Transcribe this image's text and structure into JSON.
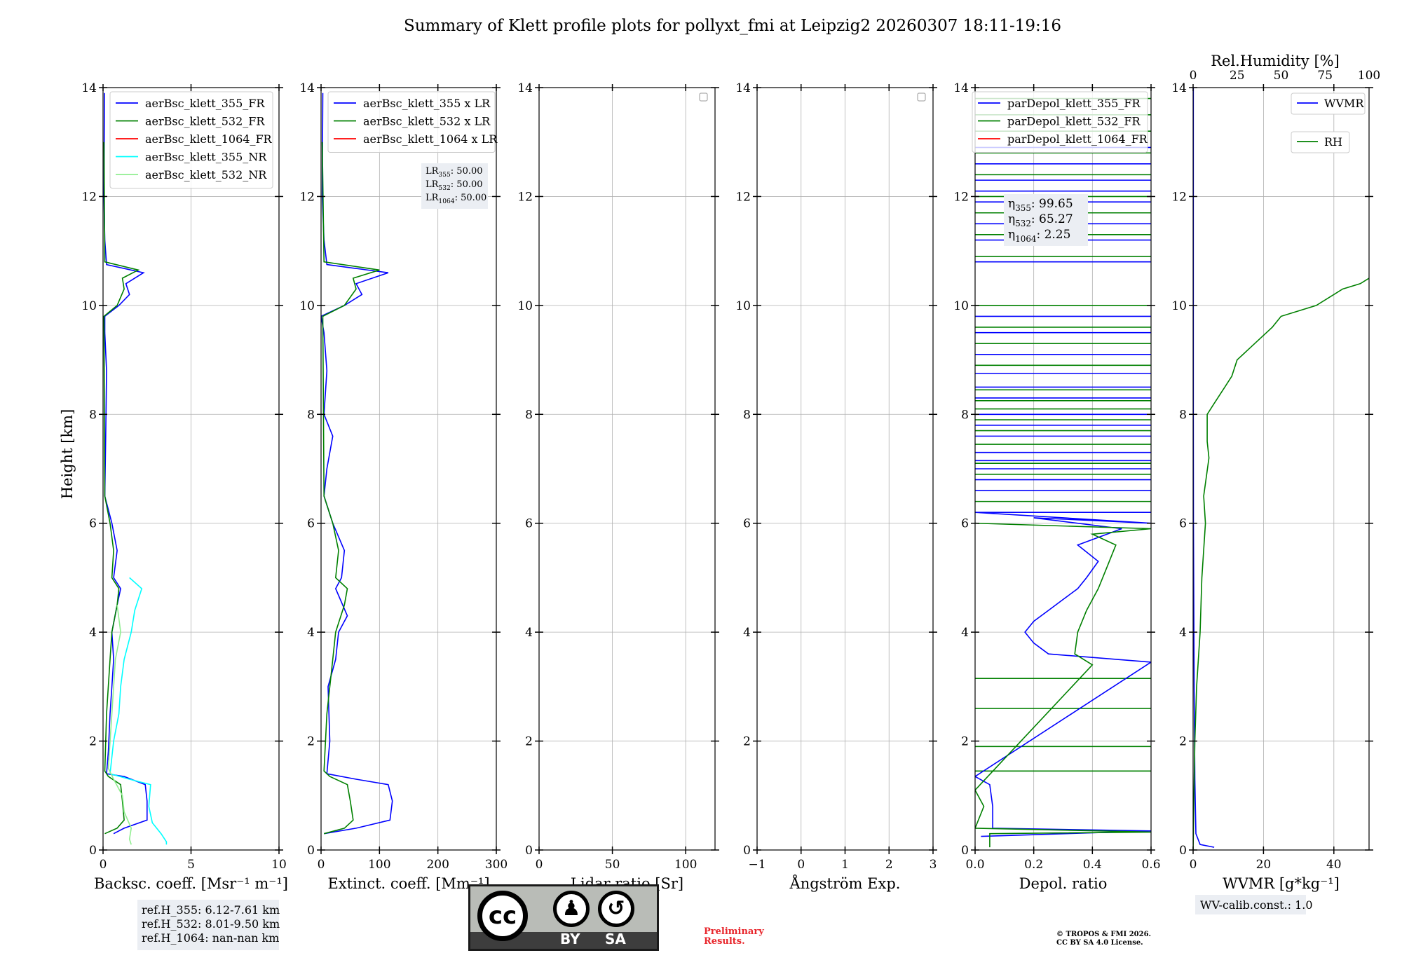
{
  "title": "Summary of Klett profile plots for pollyxt_fmi at Leipzig2 20260307 18:11-19:16",
  "y_axis_label": "Height [km]",
  "rh_axis_label": "Rel.Humidity [%]",
  "ref_heights": [
    "ref.H_355: 6.12-7.61 km",
    "ref.H_532: 8.01-9.50 km",
    "ref.H_1064: nan-nan km"
  ],
  "lr_box": [
    {
      "base": "LR",
      "sub": "355",
      "val": ": 50.00"
    },
    {
      "base": "LR",
      "sub": "532",
      "val": ": 50.00"
    },
    {
      "base": "LR",
      "sub": "1064",
      "val": ": 50.00"
    }
  ],
  "eta_box": [
    {
      "base": "η",
      "sub": "355",
      "val": ": 99.65"
    },
    {
      "base": "η",
      "sub": "532",
      "val": ": 65.27"
    },
    {
      "base": "η",
      "sub": "1064",
      "val": ": 2.25"
    }
  ],
  "wv_calib": "WV-calib.const.: 1.0",
  "preliminary": [
    "Preliminary",
    "Results."
  ],
  "copyright": [
    "© TROPOS & FMI 2026.",
    "CC BY SA 4.0 License."
  ],
  "license_badge": {
    "by": "BY",
    "sa": "SA"
  },
  "colors": {
    "c355": "#0000ff",
    "c532": "#008000",
    "c1064": "#ff0000",
    "c355nr": "#00ffff",
    "c532nr": "#90ee90"
  },
  "chart_data": [
    {
      "type": "line",
      "id": "bsc",
      "xlabel": "Backsc. coeff. [Msr⁻¹ m⁻¹]",
      "xlim": [
        0,
        10
      ],
      "xticks": [
        0,
        5,
        10
      ],
      "ylim": [
        0,
        14
      ],
      "yticks": [
        0,
        2,
        4,
        6,
        8,
        10,
        12,
        14
      ],
      "legend": [
        "aerBsc_klett_355_FR",
        "aerBsc_klett_532_FR",
        "aerBsc_klett_1064_FR",
        "aerBsc_klett_355_NR",
        "aerBsc_klett_532_NR"
      ],
      "series": [
        {
          "name": "aerBsc_klett_355_FR",
          "color": "c355",
          "points": [
            [
              0.6,
              0.3
            ],
            [
              1.2,
              0.4
            ],
            [
              2.5,
              0.55
            ],
            [
              2.5,
              0.9
            ],
            [
              2.4,
              1.2
            ],
            [
              1.2,
              1.35
            ],
            [
              0.2,
              1.4
            ],
            [
              0.3,
              1.8
            ],
            [
              0.4,
              2.5
            ],
            [
              0.5,
              3.0
            ],
            [
              0.6,
              3.5
            ],
            [
              0.5,
              4.0
            ],
            [
              0.8,
              4.5
            ],
            [
              1.0,
              4.8
            ],
            [
              0.6,
              5.0
            ],
            [
              0.8,
              5.5
            ],
            [
              0.5,
              6.0
            ],
            [
              0.1,
              6.5
            ],
            [
              0.15,
              7.6
            ],
            [
              0.2,
              8.8
            ],
            [
              0.1,
              9.5
            ],
            [
              0.1,
              9.8
            ],
            [
              0.9,
              10.0
            ],
            [
              1.5,
              10.2
            ],
            [
              1.3,
              10.4
            ],
            [
              2.3,
              10.6
            ],
            [
              0.2,
              10.75
            ],
            [
              0.1,
              11.2
            ],
            [
              0.05,
              12
            ],
            [
              0.08,
              13.9
            ]
          ]
        },
        {
          "name": "aerBsc_klett_532_FR",
          "color": "c532",
          "points": [
            [
              0.1,
              0.3
            ],
            [
              0.8,
              0.4
            ],
            [
              1.2,
              0.55
            ],
            [
              1.1,
              0.9
            ],
            [
              1.0,
              1.2
            ],
            [
              0.3,
              1.35
            ],
            [
              0.1,
              1.45
            ],
            [
              0.2,
              2.5
            ],
            [
              0.4,
              3.5
            ],
            [
              0.5,
              4.0
            ],
            [
              0.8,
              4.5
            ],
            [
              0.9,
              4.8
            ],
            [
              0.5,
              5.0
            ],
            [
              0.6,
              5.5
            ],
            [
              0.4,
              6.0
            ],
            [
              0.1,
              6.5
            ],
            [
              0.05,
              9.8
            ],
            [
              0.8,
              10.0
            ],
            [
              1.2,
              10.3
            ],
            [
              1.1,
              10.5
            ],
            [
              2.0,
              10.65
            ],
            [
              0.1,
              10.8
            ],
            [
              0.05,
              13
            ]
          ]
        },
        {
          "name": "aerBsc_klett_355_NR",
          "color": "c355nr",
          "points": [
            [
              3.6,
              0.1
            ],
            [
              3.6,
              0.15
            ],
            [
              3.3,
              0.3
            ],
            [
              2.8,
              0.5
            ],
            [
              2.6,
              0.8
            ],
            [
              2.7,
              1.2
            ],
            [
              1.5,
              1.3
            ],
            [
              0.4,
              1.4
            ],
            [
              0.6,
              2.0
            ],
            [
              0.9,
              2.5
            ],
            [
              1.0,
              3.0
            ],
            [
              1.2,
              3.5
            ],
            [
              1.6,
              4.0
            ],
            [
              1.8,
              4.4
            ],
            [
              2.0,
              4.6
            ],
            [
              2.2,
              4.8
            ],
            [
              1.5,
              5.0
            ]
          ]
        },
        {
          "name": "aerBsc_klett_532_NR",
          "color": "c532nr",
          "points": [
            [
              1.6,
              0.1
            ],
            [
              1.5,
              0.2
            ],
            [
              1.6,
              0.4
            ],
            [
              1.2,
              0.7
            ],
            [
              1.1,
              1.0
            ],
            [
              0.6,
              1.3
            ],
            [
              0.3,
              1.5
            ],
            [
              0.5,
              2.5
            ],
            [
              0.7,
              3.5
            ],
            [
              1.0,
              4.0
            ],
            [
              0.8,
              4.5
            ]
          ]
        }
      ]
    },
    {
      "type": "line",
      "id": "ext",
      "xlabel": "Extinct. coeff. [Mm⁻¹]",
      "xlim": [
        0,
        300
      ],
      "xticks": [
        0,
        100,
        200,
        300
      ],
      "ylim": [
        0,
        14
      ],
      "yticks": [
        0,
        2,
        4,
        6,
        8,
        10,
        12,
        14
      ],
      "legend": [
        "aerBsc_klett_355 x LR",
        "aerBsc_klett_532 x LR",
        "aerBsc_klett_1064 x LR"
      ],
      "series": [
        {
          "name": "aerBsc_klett_355 x LR",
          "color": "c355",
          "points": [
            [
              5,
              0.3
            ],
            [
              60,
              0.4
            ],
            [
              118,
              0.55
            ],
            [
              122,
              0.9
            ],
            [
              115,
              1.2
            ],
            [
              60,
              1.3
            ],
            [
              10,
              1.4
            ],
            [
              15,
              2.0
            ],
            [
              12,
              3.0
            ],
            [
              25,
              3.5
            ],
            [
              30,
              4.0
            ],
            [
              45,
              4.3
            ],
            [
              25,
              4.8
            ],
            [
              35,
              5.0
            ],
            [
              40,
              5.5
            ],
            [
              20,
              6.0
            ],
            [
              5,
              6.5
            ],
            [
              10,
              7.0
            ],
            [
              20,
              7.6
            ],
            [
              5,
              8.0
            ],
            [
              10,
              8.8
            ],
            [
              5,
              9.5
            ],
            [
              0,
              9.8
            ],
            [
              40,
              10.0
            ],
            [
              70,
              10.2
            ],
            [
              60,
              10.4
            ],
            [
              115,
              10.6
            ],
            [
              10,
              10.75
            ],
            [
              5,
              11.2
            ],
            [
              2,
              12
            ],
            [
              3,
              13.9
            ]
          ]
        },
        {
          "name": "aerBsc_klett_532 x LR",
          "color": "c532",
          "points": [
            [
              5,
              0.3
            ],
            [
              40,
              0.4
            ],
            [
              55,
              0.55
            ],
            [
              50,
              0.9
            ],
            [
              45,
              1.2
            ],
            [
              15,
              1.35
            ],
            [
              5,
              1.45
            ],
            [
              10,
              2.5
            ],
            [
              20,
              3.5
            ],
            [
              25,
              4.0
            ],
            [
              40,
              4.5
            ],
            [
              45,
              4.8
            ],
            [
              25,
              5.0
            ],
            [
              30,
              5.5
            ],
            [
              20,
              6.0
            ],
            [
              5,
              6.5
            ],
            [
              3,
              9.8
            ],
            [
              40,
              10.0
            ],
            [
              60,
              10.3
            ],
            [
              55,
              10.5
            ],
            [
              100,
              10.65
            ],
            [
              5,
              10.8
            ],
            [
              2,
              13
            ]
          ]
        }
      ]
    },
    {
      "type": "line",
      "id": "lr",
      "xlabel": "Lidar ratio [Sr]",
      "xlim": [
        0,
        120
      ],
      "xticks": [
        0,
        50,
        100
      ],
      "ylim": [
        0,
        14
      ],
      "yticks": [
        0,
        2,
        4,
        6,
        8,
        10,
        12,
        14
      ],
      "legend": [],
      "series": []
    },
    {
      "type": "line",
      "id": "ang",
      "xlabel": "Ångström Exp.",
      "xlim": [
        -1,
        3
      ],
      "xticks": [
        -1,
        0,
        1,
        2,
        3
      ],
      "ylim": [
        0,
        14
      ],
      "yticks": [
        0,
        2,
        4,
        6,
        8,
        10,
        12,
        14
      ],
      "legend": [],
      "series": []
    },
    {
      "type": "line",
      "id": "dep",
      "xlabel": "Depol. ratio",
      "xlim": [
        0,
        0.6
      ],
      "xticks": [
        0.0,
        0.2,
        0.4,
        0.6
      ],
      "xticklabels": [
        "0.0",
        "0.2",
        "0.4",
        "0.6"
      ],
      "ylim": [
        0,
        14
      ],
      "yticks": [
        0,
        2,
        4,
        6,
        8,
        10,
        12,
        14
      ],
      "legend": [
        "parDepol_klett_355_FR",
        "parDepol_klett_532_FR",
        "parDepol_klett_1064_FR"
      ],
      "series": [
        {
          "name": "parDepol_klett_355_FR",
          "color": "c355",
          "points": [
            [
              0.02,
              0.25
            ],
            [
              0.6,
              0.35
            ],
            [
              0.06,
              0.4
            ],
            [
              0.06,
              0.8
            ],
            [
              0.05,
              1.2
            ],
            [
              0.0,
              1.35
            ],
            [
              0.6,
              3.45
            ],
            [
              0.25,
              3.6
            ],
            [
              0.2,
              3.8
            ],
            [
              0.17,
              4.0
            ],
            [
              0.2,
              4.2
            ],
            [
              0.25,
              4.4
            ],
            [
              0.3,
              4.6
            ],
            [
              0.35,
              4.8
            ],
            [
              0.38,
              5.0
            ],
            [
              0.42,
              5.3
            ],
            [
              0.35,
              5.6
            ],
            [
              0.5,
              5.9
            ],
            [
              0.2,
              6.1
            ],
            [
              0.6,
              6.0
            ],
            [
              0.0,
              6.2
            ]
          ]
        },
        {
          "name": "parDepol_klett_532_FR",
          "color": "c532",
          "points": [
            [
              0.05,
              0.05
            ],
            [
              0.05,
              0.3
            ],
            [
              0.6,
              0.33
            ],
            [
              0.0,
              0.4
            ],
            [
              0.03,
              0.8
            ],
            [
              0.0,
              1.1
            ],
            [
              0.4,
              3.4
            ],
            [
              0.34,
              3.6
            ],
            [
              0.35,
              4.0
            ],
            [
              0.38,
              4.4
            ],
            [
              0.42,
              4.8
            ],
            [
              0.45,
              5.2
            ],
            [
              0.48,
              5.6
            ],
            [
              0.4,
              5.8
            ],
            [
              0.6,
              5.9
            ],
            [
              0.0,
              6.0
            ]
          ]
        }
      ],
      "spikes": {
        "c355": [
          6.2,
          6.6,
          6.8,
          7.0,
          7.15,
          7.3,
          7.6,
          7.8,
          8.0,
          8.3,
          8.5,
          8.75,
          9.1,
          9.5,
          9.8,
          10.8,
          11.2,
          11.5,
          11.9,
          12.1,
          12.3,
          12.6,
          12.9
        ],
        "c532": [
          1.45,
          1.9,
          2.6,
          3.15,
          6.4,
          6.9,
          7.1,
          7.45,
          7.7,
          7.9,
          8.1,
          8.25,
          8.45,
          8.9,
          9.3,
          9.6,
          10.0,
          10.9,
          11.3,
          11.7,
          12.0,
          12.4,
          12.8,
          13.2,
          13.5,
          13.8
        ]
      }
    },
    {
      "type": "line",
      "id": "wv",
      "xlabel": "WVMR [g*kg⁻¹]",
      "xlim": [
        0,
        50
      ],
      "xticks": [
        0,
        20,
        40
      ],
      "ylim": [
        0,
        14
      ],
      "yticks": [
        0,
        2,
        4,
        6,
        8,
        10,
        12,
        14
      ],
      "top_axis": {
        "lim": [
          0,
          100
        ],
        "ticks": [
          0,
          25,
          50,
          75,
          100
        ]
      },
      "legend": [
        "WVMR",
        "RH"
      ],
      "series": [
        {
          "name": "WVMR",
          "color": "c355",
          "axis": "bottom",
          "points": [
            [
              6,
              0.05
            ],
            [
              2,
              0.1
            ],
            [
              0.8,
              0.3
            ],
            [
              0.5,
              1.3
            ],
            [
              0.3,
              3.0
            ],
            [
              0.1,
              6.0
            ],
            [
              0.05,
              8.0
            ],
            [
              0.05,
              10.0
            ],
            [
              0.05,
              12.5
            ],
            [
              0.05,
              14
            ]
          ]
        },
        {
          "name": "RH",
          "color": "c532",
          "axis": "top",
          "points": [
            [
              0,
              0
            ],
            [
              1,
              2
            ],
            [
              2,
              3
            ],
            [
              4,
              4
            ],
            [
              5,
              5
            ],
            [
              7,
              6
            ],
            [
              6,
              6.5
            ],
            [
              9,
              7.2
            ],
            [
              8,
              7.5
            ],
            [
              8,
              8.0
            ],
            [
              12,
              8.2
            ],
            [
              18,
              8.5
            ],
            [
              22,
              8.7
            ],
            [
              25,
              9.0
            ],
            [
              35,
              9.3
            ],
            [
              45,
              9.6
            ],
            [
              50,
              9.8
            ],
            [
              70,
              10.0
            ],
            [
              85,
              10.3
            ],
            [
              95,
              10.4
            ],
            [
              100,
              10.5
            ]
          ]
        }
      ]
    }
  ]
}
